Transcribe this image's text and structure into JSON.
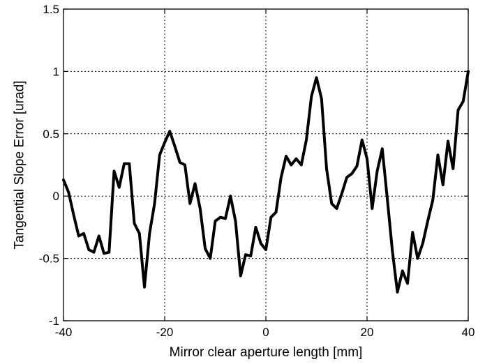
{
  "chart_data": {
    "type": "line",
    "xlabel": "Mirror clear aperture length [mm]",
    "ylabel": "Tangential Slope Error [urad]",
    "xlim": [
      -40,
      40
    ],
    "ylim": [
      -1,
      1.5
    ],
    "x_ticks": [
      -40,
      -20,
      0,
      20,
      40
    ],
    "y_ticks": [
      -1,
      -0.5,
      0,
      0.5,
      1,
      1.5
    ],
    "x_tick_labels": [
      "-40",
      "-20",
      "0",
      "20",
      "40"
    ],
    "y_tick_labels": [
      "-1",
      "-0.5",
      "0",
      "0.5",
      "1",
      "1.5"
    ],
    "grid": true,
    "grid_style": "dotted",
    "line_color": "#000000",
    "series": [
      {
        "x": [
          -40,
          -39,
          -38,
          -37,
          -36,
          -35,
          -34,
          -33,
          -32,
          -31,
          -30,
          -29,
          -28,
          -27,
          -26,
          -25,
          -24,
          -23,
          -22,
          -21,
          -20,
          -19,
          -18,
          -17,
          -16,
          -15,
          -14,
          -13,
          -12,
          -11,
          -10,
          -9,
          -8,
          -7,
          -6,
          -5,
          -4,
          -3,
          -2,
          -1,
          0,
          1,
          2,
          3,
          4,
          5,
          6,
          7,
          8,
          9,
          10,
          11,
          12,
          13,
          14,
          15,
          16,
          17,
          18,
          19,
          20,
          21,
          22,
          23,
          24,
          25,
          26,
          27,
          28,
          29,
          30,
          31,
          32,
          33,
          34,
          35,
          36,
          37,
          38,
          39,
          40
        ],
        "y": [
          0.13,
          0.03,
          -0.15,
          -0.32,
          -0.3,
          -0.43,
          -0.45,
          -0.32,
          -0.46,
          -0.45,
          0.2,
          0.07,
          0.26,
          0.26,
          -0.22,
          -0.3,
          -0.73,
          -0.3,
          -0.06,
          0.33,
          0.43,
          0.52,
          0.4,
          0.27,
          0.25,
          -0.06,
          0.1,
          -0.1,
          -0.42,
          -0.5,
          -0.2,
          -0.17,
          -0.18,
          0.0,
          -0.2,
          -0.64,
          -0.47,
          -0.48,
          -0.25,
          -0.38,
          -0.43,
          -0.17,
          -0.13,
          0.15,
          0.32,
          0.25,
          0.3,
          0.25,
          0.45,
          0.8,
          0.95,
          0.78,
          0.22,
          -0.06,
          -0.1,
          0.02,
          0.15,
          0.18,
          0.24,
          0.45,
          0.3,
          -0.1,
          0.2,
          0.38,
          -0.02,
          -0.44,
          -0.77,
          -0.6,
          -0.7,
          -0.29,
          -0.5,
          -0.38,
          -0.2,
          -0.03,
          0.33,
          0.09,
          0.44,
          0.22,
          0.69,
          0.76,
          1.0
        ]
      }
    ]
  }
}
